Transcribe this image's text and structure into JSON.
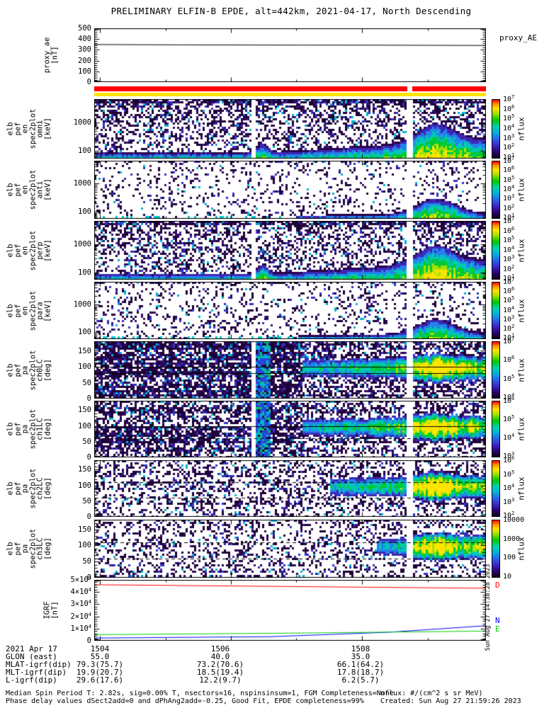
{
  "title": "PRELIMINARY ELFIN-B EPDE, alt=442km, 2021-04-17, North Descending",
  "watermark": "Sun Aug 27 14:38:28 2023",
  "footer": {
    "line1": "Median Spin Period T: 2.82s, sig=0.00% T, nsectors=16, nspinsinsum=1, FGM Completeness=None",
    "line2": "Phase delay values dSect2add=0 and dPhAng2add=-0.25, Good Fit, EPDE completeness=99%",
    "units": "nflux: #/(cm^2 s sr MeV)",
    "created": "Created: Sun Aug 27 21:59:26 2023"
  },
  "chart_data": {
    "type": "heatmap",
    "x_axis": {
      "date_label": "2021 Apr 17",
      "tick_labels": [
        "1504",
        "1506",
        "1508"
      ]
    },
    "panels": [
      {
        "id": "proxy",
        "kind": "line",
        "ylabel_lines": [
          "proxy_ae",
          "[nT]"
        ],
        "yticks": [
          "0",
          "100",
          "200",
          "300",
          "400",
          "500"
        ],
        "ylim": [
          0,
          500
        ],
        "yminor": 20,
        "right_label": "proxy_AE",
        "series": [
          {
            "name": "proxy_AE",
            "color": "#000000",
            "x": [
              0,
              0.22,
              0.45,
              0.72,
              1
            ],
            "y": [
              352,
              349,
              347,
              346,
              343
            ]
          }
        ]
      },
      {
        "id": "strip-red",
        "kind": "strip",
        "color": "#ff0000",
        "gap": true
      },
      {
        "id": "strip-yellow",
        "kind": "strip",
        "color": "#ffe400",
        "gap": false
      },
      {
        "id": "spec-omni",
        "kind": "energy-spec",
        "ylabel_lines": [
          "elb",
          "pef",
          "en",
          "spec2plot",
          "omni",
          "[keV]"
        ],
        "yticks": [
          "100",
          "1000"
        ],
        "ylim": [
          55,
          6500
        ],
        "yscale": "log",
        "colorbar": {
          "labels": [
            "10^7",
            "10^6",
            "10^5",
            "10^4",
            "10^3",
            "10^2",
            "10^1"
          ],
          "title": "nflux"
        },
        "features": "dense low-flux speckle above ~200 keV; 50-300 keV flux band intensifying after 1506:30; strong enhancement to ~1 MeV near 1508:40; data gap near 1508:20"
      },
      {
        "id": "spec-anti",
        "kind": "energy-spec",
        "ylabel_lines": [
          "elb",
          "pef",
          "en",
          "spec2plot",
          "anti",
          "[keV]"
        ],
        "yticks": [
          "100",
          "1000"
        ],
        "ylim": [
          55,
          6500
        ],
        "yscale": "log",
        "colorbar": {
          "labels": [
            "10^7",
            "10^6",
            "10^5",
            "10^4",
            "10^3",
            "10^2",
            "10^1"
          ],
          "title": "nflux"
        },
        "features": "sparse speckle; weak ~100 keV band in second half; enhancement near 1508:40"
      },
      {
        "id": "spec-perp",
        "kind": "energy-spec",
        "ylabel_lines": [
          "elb",
          "pef",
          "en",
          "spec2plot",
          "perp",
          "[keV]"
        ],
        "yticks": [
          "100",
          "1000"
        ],
        "ylim": [
          55,
          6500
        ],
        "yscale": "log",
        "colorbar": {
          "labels": [
            "10^7",
            "10^6",
            "10^5",
            "10^4",
            "10^3",
            "10^2",
            "10^1"
          ],
          "title": "nflux"
        },
        "features": "similar to omni: growing 50-300 keV band, strong enhancement near 1508:40"
      },
      {
        "id": "spec-para",
        "kind": "energy-spec",
        "ylabel_lines": [
          "elb",
          "pef",
          "en",
          "spec2plot",
          "para",
          "[keV]"
        ],
        "yticks": [
          "100",
          "1000"
        ],
        "ylim": [
          55,
          6500
        ],
        "yscale": "log",
        "colorbar": {
          "labels": [
            "10^7",
            "10^6",
            "10^5",
            "10^4",
            "10^3",
            "10^2",
            "10^1"
          ],
          "title": "nflux"
        },
        "features": "sparse speckle; weak low-energy band right half; enhancement near 1508:40"
      },
      {
        "id": "pa-ch0",
        "kind": "pa-spec",
        "ylabel_lines": [
          "elb",
          "pef",
          "pa",
          "spec2plot",
          "ch0LC",
          "[deg]"
        ],
        "yticks": [
          "0",
          "50",
          "100",
          "150"
        ],
        "ylim": [
          0,
          180
        ],
        "yminor": 10,
        "colorbar": {
          "labels": [
            "10^7",
            "10^6",
            "10^5",
            "10^4"
          ],
          "title": "nflux"
        },
        "features": "dense dark background; 90-deg-centered flux band after ~1506:30 peaking near 1508:40; narrow vertical feature near 1505:30"
      },
      {
        "id": "pa-ch1",
        "kind": "pa-spec",
        "ylabel_lines": [
          "elb",
          "pef",
          "pa",
          "spec2plot",
          "ch1LC",
          "[deg]"
        ],
        "yticks": [
          "0",
          "50",
          "100",
          "150"
        ],
        "ylim": [
          0,
          180
        ],
        "yminor": 10,
        "colorbar": {
          "labels": [
            "10^6",
            "10^5",
            "10^4",
            "10^3"
          ],
          "title": "nflux"
        },
        "features": "dark background; 90-deg band intensifying after 1506:30, peak near 1508:40"
      },
      {
        "id": "pa-ch2",
        "kind": "pa-spec",
        "ylabel_lines": [
          "elb",
          "pef",
          "pa",
          "spec2plot",
          "ch2LC",
          "[deg]"
        ],
        "yticks": [
          "0",
          "50",
          "100",
          "150"
        ],
        "ylim": [
          0,
          180
        ],
        "yminor": 10,
        "colorbar": {
          "labels": [
            "10^6",
            "10^5",
            "10^4",
            "10^3",
            "10^2"
          ],
          "title": "nflux"
        },
        "features": "sparser speckle; 90-deg band mainly after 1507:30, peak near 1508:40; dashed loss-cone guides"
      },
      {
        "id": "pa-ch3",
        "kind": "pa-spec",
        "ylabel_lines": [
          "elb",
          "pef",
          "pa",
          "spec2plot",
          "ch3LC",
          "[deg]"
        ],
        "yticks": [
          "0",
          "50",
          "100",
          "150"
        ],
        "ylim": [
          0,
          180
        ],
        "yminor": 10,
        "colorbar": {
          "labels": [
            "10000",
            "1000",
            "100",
            "10"
          ],
          "title": "nflux"
        },
        "features": "sparse speckle; compact 90-deg enhancement near 1508:40"
      },
      {
        "id": "igrf",
        "kind": "line",
        "ylabel_lines": [
          "IGRF",
          "[nT]"
        ],
        "yticks": [
          "0",
          "1x10^4",
          "2x10^4",
          "3x10^4",
          "4x10^4",
          "5x10^4"
        ],
        "ylim": [
          0,
          50000
        ],
        "yminor": 2000,
        "series": [
          {
            "name": "D",
            "color": "#ff0000",
            "x": [
              0,
              1
            ],
            "y": [
              46500,
              43500
            ]
          },
          {
            "name": "N",
            "color": "#0000ff",
            "x": [
              0,
              0.45,
              0.75,
              1
            ],
            "y": [
              1700,
              2800,
              6500,
              12000
            ]
          },
          {
            "name": "E",
            "color": "#00cc00",
            "x": [
              0,
              0.5,
              1
            ],
            "y": [
              4500,
              5800,
              7500
            ]
          }
        ]
      }
    ],
    "bottom_table": {
      "row_headers": [
        "2021 Apr 17",
        "GLON (east)",
        "MLAT-igrf(dip)",
        "MLT-igrf(dip)",
        "L-igrf(dip)"
      ],
      "columns": [
        [
          "1504",
          "55.0",
          "79.3(75.7)",
          "19.9(20.7)",
          "29.6(17.6)"
        ],
        [
          "1506",
          "40.0",
          "73.2(70.6)",
          "18.5(19.4)",
          "12.2(9.7)"
        ],
        [
          "1508",
          "35.0",
          "66.1(64.2)",
          "17.8(18.7)",
          "6.2(5.7)"
        ]
      ]
    }
  }
}
